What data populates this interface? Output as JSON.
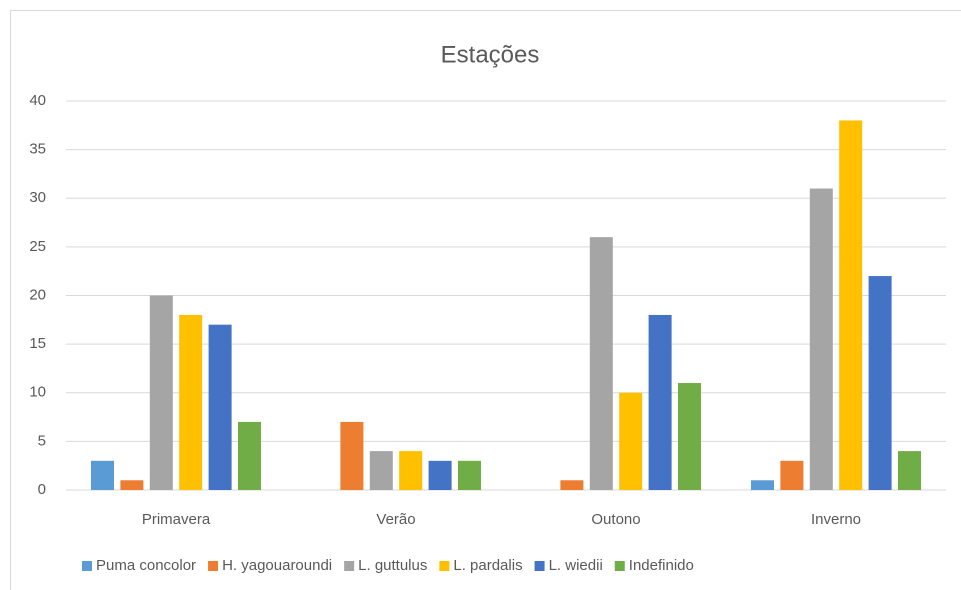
{
  "chart_data": {
    "type": "bar",
    "title": "Estações",
    "categories": [
      "Primavera",
      "Verão",
      "Outono",
      "Inverno"
    ],
    "series": [
      {
        "name": "Puma concolor",
        "color": "#5b9bd5",
        "values": [
          3,
          0,
          0,
          1
        ]
      },
      {
        "name": "H. yagouaroundi",
        "color": "#ed7d31",
        "values": [
          1,
          7,
          1,
          3
        ]
      },
      {
        "name": "L. guttulus",
        "color": "#a5a5a5",
        "values": [
          20,
          4,
          26,
          31
        ]
      },
      {
        "name": "L. pardalis",
        "color": "#ffc000",
        "values": [
          18,
          4,
          10,
          38
        ]
      },
      {
        "name": "L. wiedii",
        "color": "#4472c4",
        "values": [
          17,
          3,
          18,
          22
        ]
      },
      {
        "name": "Indefinido",
        "color": "#70ad47",
        "values": [
          7,
          3,
          11,
          4
        ]
      }
    ],
    "ylim": [
      0,
      40
    ],
    "yticks": [
      0,
      5,
      10,
      15,
      20,
      25,
      30,
      35,
      40
    ],
    "grid": true,
    "legend": "bottom"
  }
}
